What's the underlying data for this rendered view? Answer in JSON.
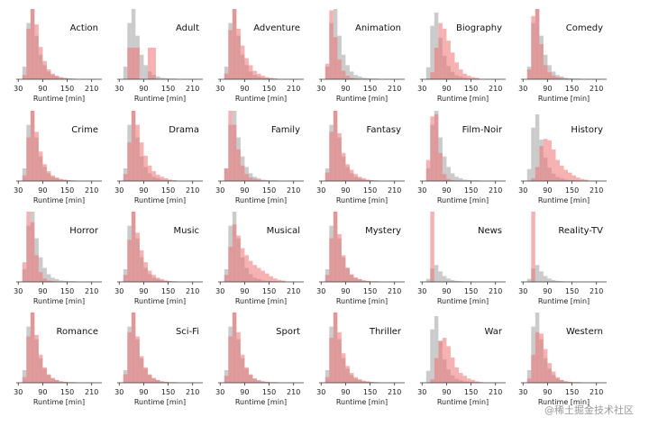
{
  "chart_data": {
    "type": "bar",
    "subtype": "histogram-small-multiples",
    "grid": false,
    "legend": "none",
    "xlabel": "Runtime [min]",
    "xticks": [
      30,
      90,
      150,
      210
    ],
    "xlim": [
      25,
      235
    ],
    "bin_width": 10,
    "colors": {
      "all_movies": "#a0a0a0",
      "genre": "#ee7373"
    },
    "baseline_all": [
      0,
      0,
      0,
      0,
      0.18,
      0.8,
      1.0,
      0.62,
      0.35,
      0.2,
      0.11,
      0.06,
      0.04,
      0.02,
      0.015,
      0.01,
      0.01,
      0,
      0,
      0,
      0
    ],
    "panels": [
      {
        "title": "Action",
        "values": [
          0,
          0,
          0,
          0,
          0.06,
          0.72,
          1.0,
          0.78,
          0.46,
          0.26,
          0.14,
          0.08,
          0.05,
          0.03,
          0.02,
          0.01,
          0,
          0,
          0,
          0,
          0
        ]
      },
      {
        "title": "Adult",
        "all_max": 1.0,
        "values": [
          0,
          0,
          0,
          0,
          0,
          0.45,
          0.45,
          0.45,
          0,
          0,
          0.45,
          0.45,
          0,
          0,
          0,
          0,
          0,
          0,
          0,
          0,
          0
        ]
      },
      {
        "title": "Adventure",
        "values": [
          0,
          0,
          0,
          0,
          0.08,
          0.7,
          1.0,
          0.72,
          0.48,
          0.3,
          0.2,
          0.12,
          0.08,
          0.05,
          0.03,
          0.02,
          0.01,
          0,
          0,
          0,
          0
        ]
      },
      {
        "title": "Animation",
        "values": [
          0,
          0,
          0,
          0,
          0.22,
          0.98,
          0.6,
          0.28,
          0.12,
          0.05,
          0.02,
          0.01,
          0,
          0,
          0,
          0,
          0,
          0,
          0,
          0,
          0
        ]
      },
      {
        "title": "Biography",
        "all_max": 0.95,
        "values": [
          0,
          0,
          0,
          0,
          0,
          0.1,
          0.45,
          0.8,
          0.72,
          0.55,
          0.38,
          0.24,
          0.14,
          0.08,
          0.05,
          0.03,
          0.02,
          0,
          0,
          0,
          0
        ]
      },
      {
        "title": "Comedy",
        "values": [
          0,
          0,
          0,
          0,
          0.14,
          0.9,
          1.0,
          0.5,
          0.2,
          0.1,
          0.05,
          0.03,
          0.02,
          0.01,
          0,
          0,
          0,
          0,
          0,
          0,
          0
        ]
      },
      {
        "title": "Crime",
        "values": [
          0,
          0,
          0,
          0,
          0.08,
          0.62,
          1.0,
          0.7,
          0.42,
          0.24,
          0.14,
          0.08,
          0.05,
          0.03,
          0.02,
          0.01,
          0,
          0,
          0,
          0,
          0
        ]
      },
      {
        "title": "Drama",
        "values": [
          0,
          0,
          0,
          0,
          0.1,
          0.55,
          1.0,
          0.8,
          0.55,
          0.36,
          0.22,
          0.14,
          0.09,
          0.06,
          0.04,
          0.02,
          0.01,
          0,
          0,
          0,
          0
        ]
      },
      {
        "title": "Family",
        "values": [
          0,
          0,
          0,
          0,
          0.18,
          1.0,
          0.8,
          0.45,
          0.22,
          0.1,
          0.05,
          0.03,
          0.02,
          0.01,
          0,
          0,
          0,
          0,
          0,
          0,
          0
        ]
      },
      {
        "title": "Fantasy",
        "values": [
          0,
          0,
          0,
          0,
          0.12,
          0.7,
          1.0,
          0.68,
          0.4,
          0.24,
          0.16,
          0.1,
          0.06,
          0.04,
          0.02,
          0.01,
          0,
          0,
          0,
          0,
          0
        ]
      },
      {
        "title": "Film-Noir",
        "values": [
          0,
          0,
          0,
          0,
          0.3,
          0.92,
          0.95,
          0.4,
          0.1,
          0.03,
          0.01,
          0,
          0,
          0,
          0,
          0,
          0,
          0,
          0,
          0,
          0
        ]
      },
      {
        "title": "History",
        "all_max": 0.95,
        "values": [
          0,
          0,
          0,
          0,
          0,
          0.04,
          0.2,
          0.5,
          0.6,
          0.58,
          0.45,
          0.3,
          0.22,
          0.16,
          0.12,
          0.08,
          0.05,
          0.03,
          0.02,
          0,
          0
        ]
      },
      {
        "title": "Horror",
        "values": [
          0,
          0,
          0,
          0,
          0.28,
          1.0,
          0.85,
          0.38,
          0.14,
          0.05,
          0.02,
          0.01,
          0,
          0,
          0,
          0,
          0,
          0,
          0,
          0,
          0
        ]
      },
      {
        "title": "Music",
        "values": [
          0,
          0,
          0,
          0,
          0.1,
          0.6,
          1.0,
          0.7,
          0.45,
          0.28,
          0.16,
          0.1,
          0.06,
          0.04,
          0.02,
          0.01,
          0,
          0,
          0,
          0,
          0
        ]
      },
      {
        "title": "Musical",
        "values": [
          0,
          0,
          0,
          0,
          0.1,
          0.5,
          0.82,
          0.66,
          0.48,
          0.38,
          0.3,
          0.24,
          0.2,
          0.16,
          0.12,
          0.08,
          0.05,
          0.03,
          0.02,
          0,
          0
        ]
      },
      {
        "title": "Mystery",
        "values": [
          0,
          0,
          0,
          0,
          0.1,
          0.62,
          1.0,
          0.68,
          0.38,
          0.2,
          0.1,
          0.06,
          0.04,
          0.02,
          0.01,
          0,
          0,
          0,
          0,
          0,
          0
        ]
      },
      {
        "title": "News",
        "all_max": 0.24,
        "values": [
          0,
          0,
          0,
          0,
          0,
          1.0,
          0,
          0,
          0,
          0,
          0,
          0,
          0,
          0,
          0,
          0,
          0,
          0,
          0,
          0,
          0
        ]
      },
      {
        "title": "Reality-TV",
        "all_max": 0.24,
        "values": [
          0,
          0,
          0,
          0,
          0,
          1.0,
          0,
          0,
          0,
          0,
          0,
          0,
          0,
          0,
          0,
          0,
          0,
          0,
          0,
          0,
          0
        ]
      },
      {
        "title": "Romance",
        "values": [
          0,
          0,
          0,
          0,
          0.08,
          0.66,
          1.0,
          0.68,
          0.4,
          0.22,
          0.12,
          0.07,
          0.04,
          0.02,
          0.01,
          0,
          0,
          0,
          0,
          0,
          0
        ]
      },
      {
        "title": "Sci-Fi",
        "values": [
          0,
          0,
          0,
          0,
          0.12,
          0.72,
          1.0,
          0.66,
          0.38,
          0.22,
          0.12,
          0.07,
          0.04,
          0.02,
          0.01,
          0,
          0,
          0,
          0,
          0,
          0
        ]
      },
      {
        "title": "Sport",
        "values": [
          0,
          0,
          0,
          0,
          0.1,
          0.66,
          1.0,
          0.72,
          0.4,
          0.22,
          0.12,
          0.06,
          0.03,
          0.02,
          0.01,
          0,
          0,
          0,
          0,
          0,
          0
        ]
      },
      {
        "title": "Thriller",
        "values": [
          0,
          0,
          0,
          0,
          0.08,
          0.64,
          1.0,
          0.72,
          0.42,
          0.24,
          0.14,
          0.08,
          0.05,
          0.03,
          0.02,
          0.01,
          0,
          0,
          0,
          0,
          0
        ]
      },
      {
        "title": "War",
        "all_max": 0.95,
        "values": [
          0,
          0,
          0,
          0,
          0,
          0.05,
          0.35,
          0.6,
          0.64,
          0.52,
          0.36,
          0.22,
          0.14,
          0.1,
          0.06,
          0.04,
          0.02,
          0.01,
          0,
          0,
          0
        ]
      },
      {
        "title": "Western",
        "values": [
          0,
          0,
          0,
          0,
          0.06,
          0.4,
          0.72,
          0.7,
          0.48,
          0.28,
          0.16,
          0.08,
          0.04,
          0.02,
          0.01,
          0,
          0,
          0,
          0,
          0,
          0
        ]
      }
    ]
  },
  "watermark": "@稀土掘金技术社区"
}
